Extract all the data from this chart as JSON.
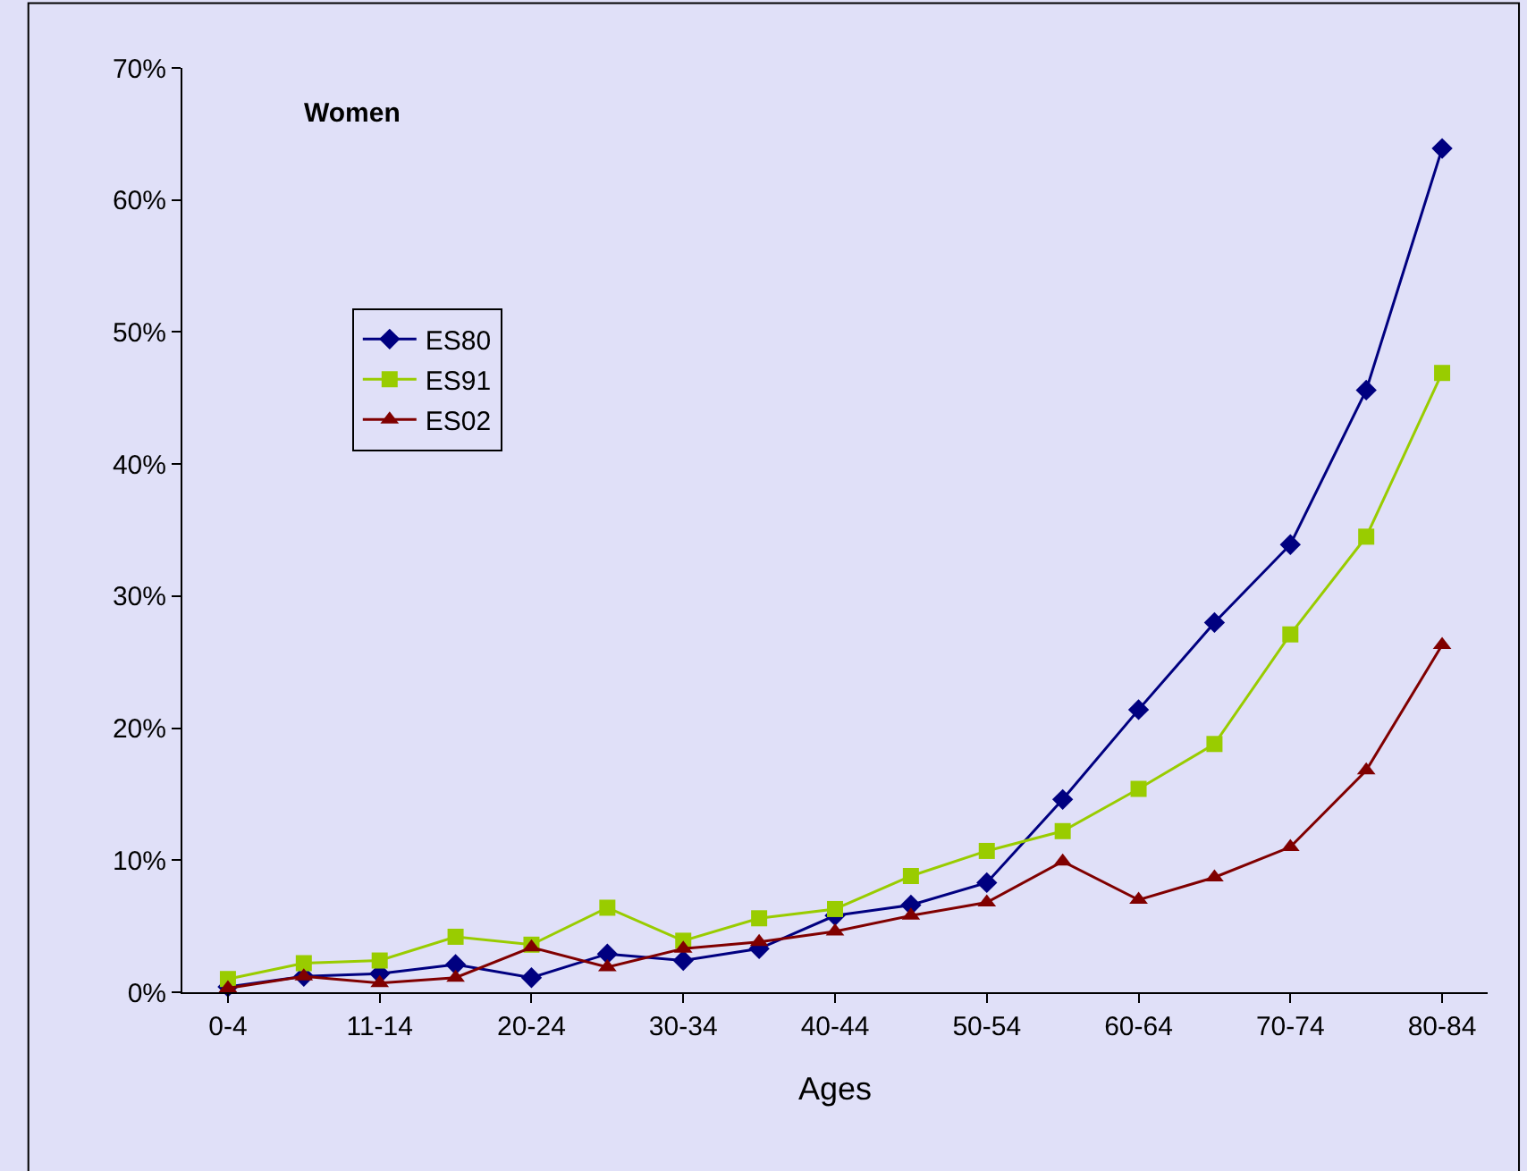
{
  "chart_data": {
    "type": "line",
    "title": "Women",
    "xlabel": "Ages",
    "categories": [
      "0-4",
      null,
      "11-14",
      null,
      "20-24",
      null,
      "30-34",
      null,
      "40-44",
      null,
      "50-54",
      null,
      "60-64",
      null,
      "70-74",
      null,
      "80-84"
    ],
    "series": [
      {
        "name": "ES80",
        "color": "#000080",
        "marker": "diamond",
        "values": [
          0.4,
          1.2,
          1.4,
          2.1,
          1.1,
          2.9,
          2.4,
          3.3,
          5.8,
          6.6,
          8.3,
          14.6,
          21.4,
          28.0,
          33.9,
          45.6,
          63.9
        ]
      },
      {
        "name": "ES91",
        "color": "#99cc00",
        "marker": "square",
        "values": [
          1.0,
          2.2,
          2.4,
          4.2,
          3.6,
          6.4,
          3.9,
          5.6,
          6.3,
          8.8,
          10.7,
          12.2,
          15.4,
          18.8,
          27.1,
          34.5,
          46.9
        ]
      },
      {
        "name": "ES02",
        "color": "#800000",
        "marker": "triangle",
        "values": [
          0.3,
          1.2,
          0.7,
          1.1,
          3.4,
          1.9,
          3.3,
          3.8,
          4.6,
          5.8,
          6.8,
          9.9,
          7.0,
          8.7,
          11.0,
          16.8,
          26.3
        ]
      }
    ],
    "ylim": [
      0,
      70
    ],
    "yticks": [
      {
        "value": 0,
        "label": "0%"
      },
      {
        "value": 10,
        "label": "10%"
      },
      {
        "value": 20,
        "label": "20%"
      },
      {
        "value": 30,
        "label": "30%"
      },
      {
        "value": 40,
        "label": "40%"
      },
      {
        "value": 50,
        "label": "50%"
      },
      {
        "value": 60,
        "label": "60%"
      },
      {
        "value": 70,
        "label": "70%"
      }
    ],
    "grid": false,
    "legend": "left",
    "line_style": "solid"
  }
}
